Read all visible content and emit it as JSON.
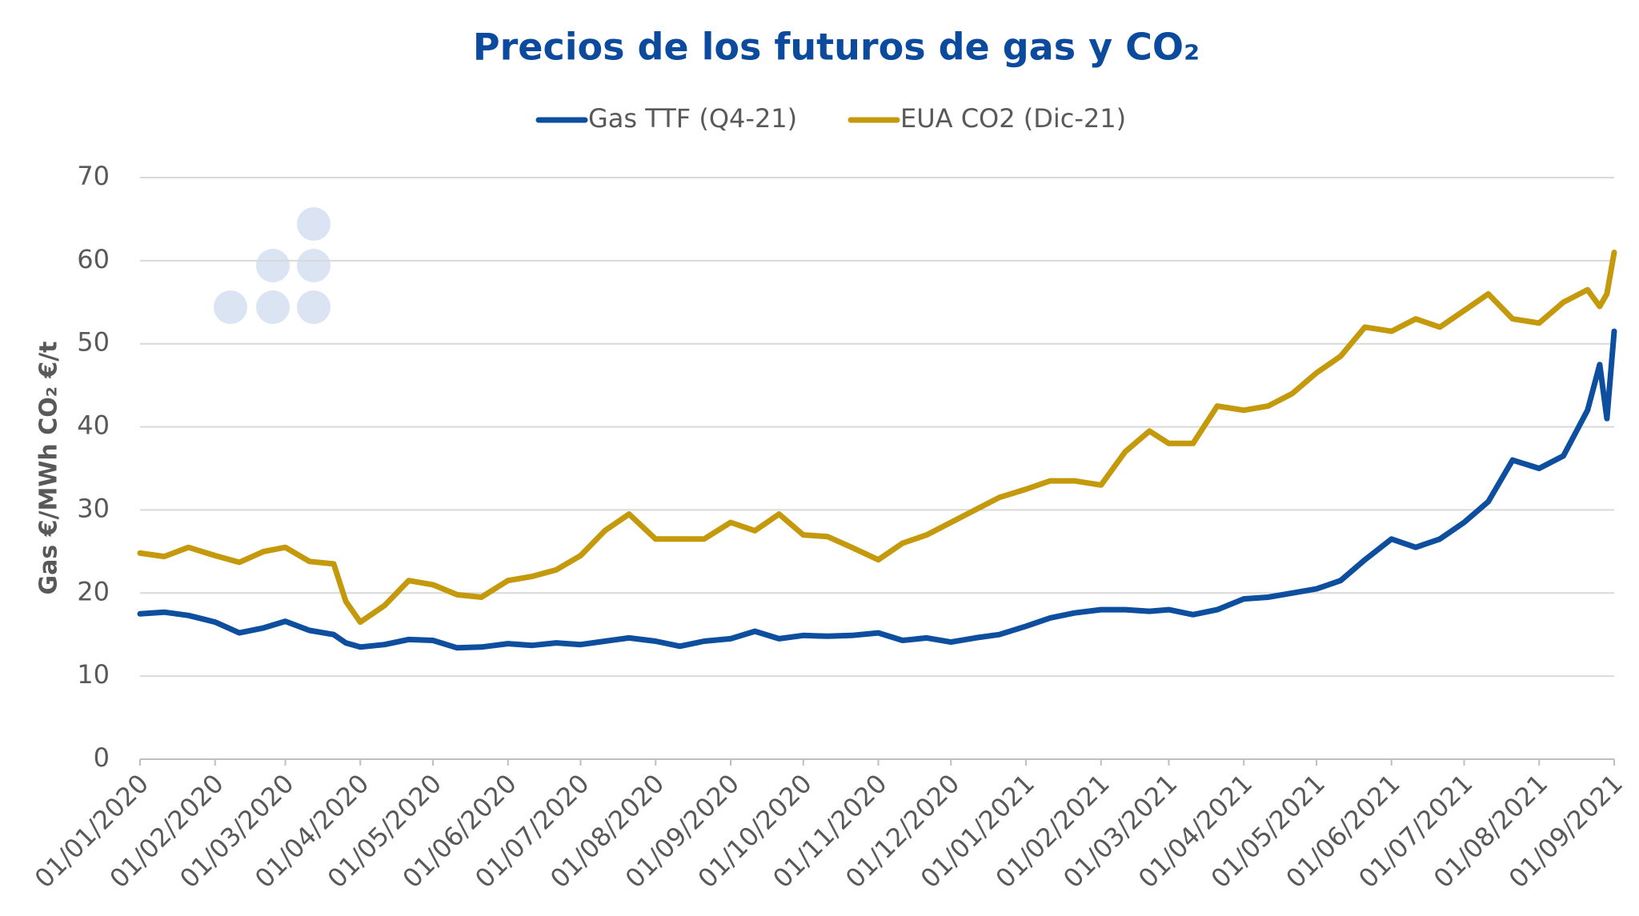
{
  "chart_data": {
    "type": "line",
    "title": "Precios de los futuros de gas y CO₂",
    "y_label": "Gas €/MWh   CO₂ €/t",
    "x": [
      "01/01/2020",
      "11/01/2020",
      "21/01/2020",
      "01/02/2020",
      "11/02/2020",
      "21/02/2020",
      "01/03/2020",
      "11/03/2020",
      "21/03/2020",
      "26/03/2020",
      "01/04/2020",
      "11/04/2020",
      "21/04/2020",
      "01/05/2020",
      "11/05/2020",
      "21/05/2020",
      "01/06/2020",
      "11/06/2020",
      "21/06/2020",
      "01/07/2020",
      "11/07/2020",
      "21/07/2020",
      "01/08/2020",
      "11/08/2020",
      "21/08/2020",
      "01/09/2020",
      "11/09/2020",
      "21/09/2020",
      "01/10/2020",
      "11/10/2020",
      "21/10/2020",
      "01/11/2020",
      "11/11/2020",
      "21/11/2020",
      "01/12/2020",
      "11/12/2020",
      "21/12/2020",
      "01/01/2021",
      "11/01/2021",
      "21/01/2021",
      "01/02/2021",
      "11/02/2021",
      "21/02/2021",
      "01/03/2021",
      "11/03/2021",
      "21/03/2021",
      "01/04/2021",
      "11/04/2021",
      "21/04/2021",
      "01/05/2021",
      "11/05/2021",
      "21/05/2021",
      "01/06/2021",
      "11/06/2021",
      "21/06/2021",
      "01/07/2021",
      "11/07/2021",
      "21/07/2021",
      "01/08/2021",
      "11/08/2021",
      "21/08/2021",
      "26/08/2021",
      "29/08/2021",
      "01/09/2021"
    ],
    "series": [
      {
        "name": "Gas TTF (Q4-21)",
        "color": "#0d4f9e",
        "values": [
          17.5,
          17.7,
          17.3,
          16.5,
          15.2,
          15.8,
          16.6,
          15.5,
          15.0,
          14.0,
          13.5,
          13.8,
          14.4,
          14.3,
          13.4,
          13.5,
          13.9,
          13.7,
          14.0,
          13.8,
          14.2,
          14.6,
          14.2,
          13.6,
          14.2,
          14.5,
          15.4,
          14.5,
          14.9,
          14.8,
          14.9,
          15.2,
          14.3,
          14.6,
          14.1,
          14.6,
          15.0,
          16.0,
          17.0,
          17.6,
          18.0,
          18.0,
          17.8,
          18.0,
          17.4,
          18.0,
          19.3,
          19.5,
          20.0,
          20.5,
          21.5,
          24.0,
          26.5,
          25.5,
          26.5,
          28.5,
          31.0,
          36.0,
          35.0,
          36.5,
          42.0,
          47.5,
          41.0,
          51.5
        ]
      },
      {
        "name": "EUA CO2 (Dic-21)",
        "color": "#c49a0c",
        "values": [
          24.8,
          24.4,
          25.5,
          24.5,
          23.7,
          25.0,
          25.5,
          23.8,
          23.5,
          19.0,
          16.5,
          18.5,
          21.5,
          21.0,
          19.8,
          19.5,
          21.5,
          22.0,
          22.8,
          24.5,
          27.5,
          29.5,
          26.5,
          26.5,
          26.5,
          28.5,
          27.5,
          29.5,
          27.0,
          26.8,
          25.5,
          24.0,
          26.0,
          27.0,
          28.5,
          30.0,
          31.5,
          32.5,
          33.5,
          33.5,
          33.0,
          37.0,
          39.5,
          38.0,
          38.0,
          42.5,
          42.0,
          42.5,
          44.0,
          46.5,
          48.5,
          52.0,
          51.5,
          53.0,
          52.0,
          54.0,
          56.0,
          53.0,
          52.5,
          55.0,
          56.5,
          54.5,
          56.0,
          61.0
        ]
      }
    ],
    "xlim": [
      "01/01/2020",
      "01/09/2021"
    ],
    "xticks": [
      "01/01/2020",
      "01/02/2020",
      "01/03/2020",
      "01/04/2020",
      "01/05/2020",
      "01/06/2020",
      "01/07/2020",
      "01/08/2020",
      "01/09/2020",
      "01/10/2020",
      "01/11/2020",
      "01/12/2020",
      "01/01/2021",
      "01/02/2021",
      "01/03/2021",
      "01/04/2021",
      "01/05/2021",
      "01/06/2021",
      "01/07/2021",
      "01/08/2021",
      "01/09/2021"
    ],
    "ylim": [
      0,
      70
    ],
    "yticks": [
      0,
      10,
      20,
      30,
      40,
      50,
      60,
      70
    ],
    "grid": true,
    "legend": "top"
  }
}
